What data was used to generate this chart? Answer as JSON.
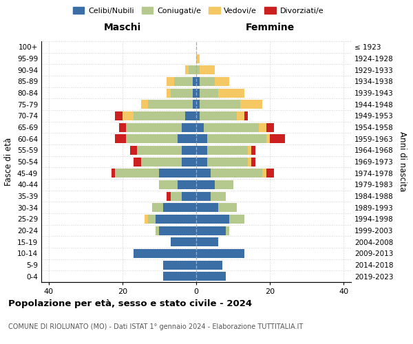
{
  "age_groups": [
    "0-4",
    "5-9",
    "10-14",
    "15-19",
    "20-24",
    "25-29",
    "30-34",
    "35-39",
    "40-44",
    "45-49",
    "50-54",
    "55-59",
    "60-64",
    "65-69",
    "70-74",
    "75-79",
    "80-84",
    "85-89",
    "90-94",
    "95-99",
    "100+"
  ],
  "birth_years": [
    "2019-2023",
    "2014-2018",
    "2009-2013",
    "2004-2008",
    "1999-2003",
    "1994-1998",
    "1989-1993",
    "1984-1988",
    "1979-1983",
    "1974-1978",
    "1969-1973",
    "1964-1968",
    "1959-1963",
    "1954-1958",
    "1949-1953",
    "1944-1948",
    "1939-1943",
    "1934-1938",
    "1929-1933",
    "1924-1928",
    "≤ 1923"
  ],
  "maschi": {
    "celibi": [
      9,
      9,
      17,
      7,
      10,
      11,
      9,
      4,
      5,
      10,
      4,
      4,
      5,
      4,
      3,
      1,
      1,
      1,
      0,
      0,
      0
    ],
    "coniugati": [
      0,
      0,
      0,
      0,
      1,
      2,
      3,
      3,
      5,
      12,
      11,
      12,
      14,
      15,
      14,
      12,
      6,
      5,
      2,
      0,
      0
    ],
    "vedovi": [
      0,
      0,
      0,
      0,
      0,
      1,
      0,
      0,
      0,
      0,
      0,
      0,
      0,
      0,
      3,
      2,
      1,
      2,
      1,
      0,
      0
    ],
    "divorziati": [
      0,
      0,
      0,
      0,
      0,
      0,
      0,
      1,
      0,
      1,
      2,
      2,
      3,
      2,
      2,
      0,
      0,
      0,
      0,
      0,
      0
    ]
  },
  "femmine": {
    "nubili": [
      8,
      7,
      13,
      6,
      8,
      9,
      6,
      4,
      5,
      4,
      3,
      3,
      3,
      2,
      1,
      1,
      1,
      1,
      0,
      0,
      0
    ],
    "coniugate": [
      0,
      0,
      0,
      0,
      1,
      4,
      5,
      4,
      5,
      14,
      11,
      11,
      16,
      15,
      10,
      11,
      5,
      4,
      1,
      0,
      0
    ],
    "vedove": [
      0,
      0,
      0,
      0,
      0,
      0,
      0,
      0,
      0,
      1,
      1,
      1,
      1,
      2,
      2,
      6,
      7,
      4,
      4,
      1,
      0
    ],
    "divorziate": [
      0,
      0,
      0,
      0,
      0,
      0,
      0,
      0,
      0,
      2,
      1,
      1,
      4,
      2,
      1,
      0,
      0,
      0,
      0,
      0,
      0
    ]
  },
  "colors": {
    "celibi": "#3a6ea5",
    "coniugati": "#b5c98e",
    "vedovi": "#f5c863",
    "divorziati": "#cc2020"
  },
  "xlim": [
    -42,
    42
  ],
  "xticks": [
    -40,
    -20,
    0,
    20,
    40
  ],
  "xticklabels": [
    "40",
    "20",
    "0",
    "20",
    "40"
  ],
  "title": "Popolazione per età, sesso e stato civile - 2024",
  "subtitle": "COMUNE DI RIOLUNATO (MO) - Dati ISTAT 1° gennaio 2024 - Elaborazione TUTTITALIA.IT",
  "ylabel_left": "Fasce di età",
  "ylabel_right": "Anni di nascita",
  "label_maschi": "Maschi",
  "label_femmine": "Femmine",
  "legend_labels": [
    "Celibi/Nubili",
    "Coniugati/e",
    "Vedovi/e",
    "Divorziati/e"
  ]
}
